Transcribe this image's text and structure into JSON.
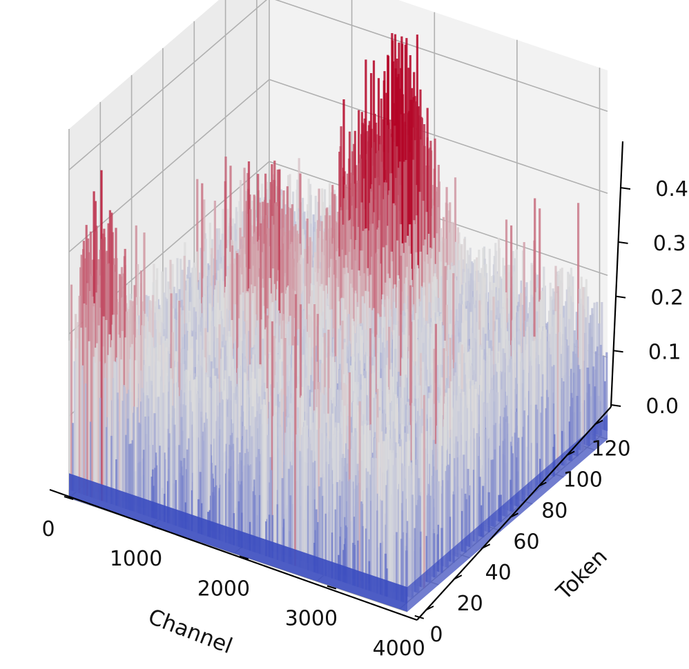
{
  "chart_data": {
    "type": "surface3d",
    "title": "",
    "colormap": "coolwarm",
    "colors": {
      "low": "#3b4cc0",
      "mid": "#dddddd",
      "high": "#b40426",
      "pane_side": "#ebebeb",
      "pane_back": "#f2f2f2",
      "pane_floor": "#f0f0f0",
      "grid": "#b0b0b0"
    },
    "x_axis": {
      "label": "Channel",
      "range": [
        0,
        4096
      ],
      "ticks": [
        0,
        1000,
        2000,
        3000,
        4000
      ],
      "tick_labels": [
        "0",
        "1000",
        "2000",
        "3000",
        "4000"
      ]
    },
    "y_axis": {
      "label": "Token",
      "range": [
        0,
        128
      ],
      "ticks": [
        0,
        20,
        40,
        60,
        80,
        100,
        120
      ],
      "tick_labels": [
        "0",
        "20",
        "40",
        "60",
        "80",
        "100",
        "120"
      ]
    },
    "z_axis": {
      "label": "",
      "range": [
        0,
        0.45
      ],
      "ticks": [
        0.0,
        0.1,
        0.2,
        0.3,
        0.4
      ],
      "tick_labels": [
        "0.0",
        "0.1",
        "0.2",
        "0.3",
        "0.4"
      ]
    },
    "grid": true,
    "surface": {
      "baseline_value": 0.02,
      "typical_range": [
        0.05,
        0.25
      ],
      "max_value": 0.45,
      "hotspots": [
        {
          "channel": 2000,
          "token": 110,
          "value": 0.45
        },
        {
          "channel": 200,
          "token": 10,
          "value": 0.33
        },
        {
          "channel": 1100,
          "token": 70,
          "value": 0.3
        },
        {
          "channel": 1800,
          "token": 90,
          "value": 0.38
        }
      ]
    }
  }
}
